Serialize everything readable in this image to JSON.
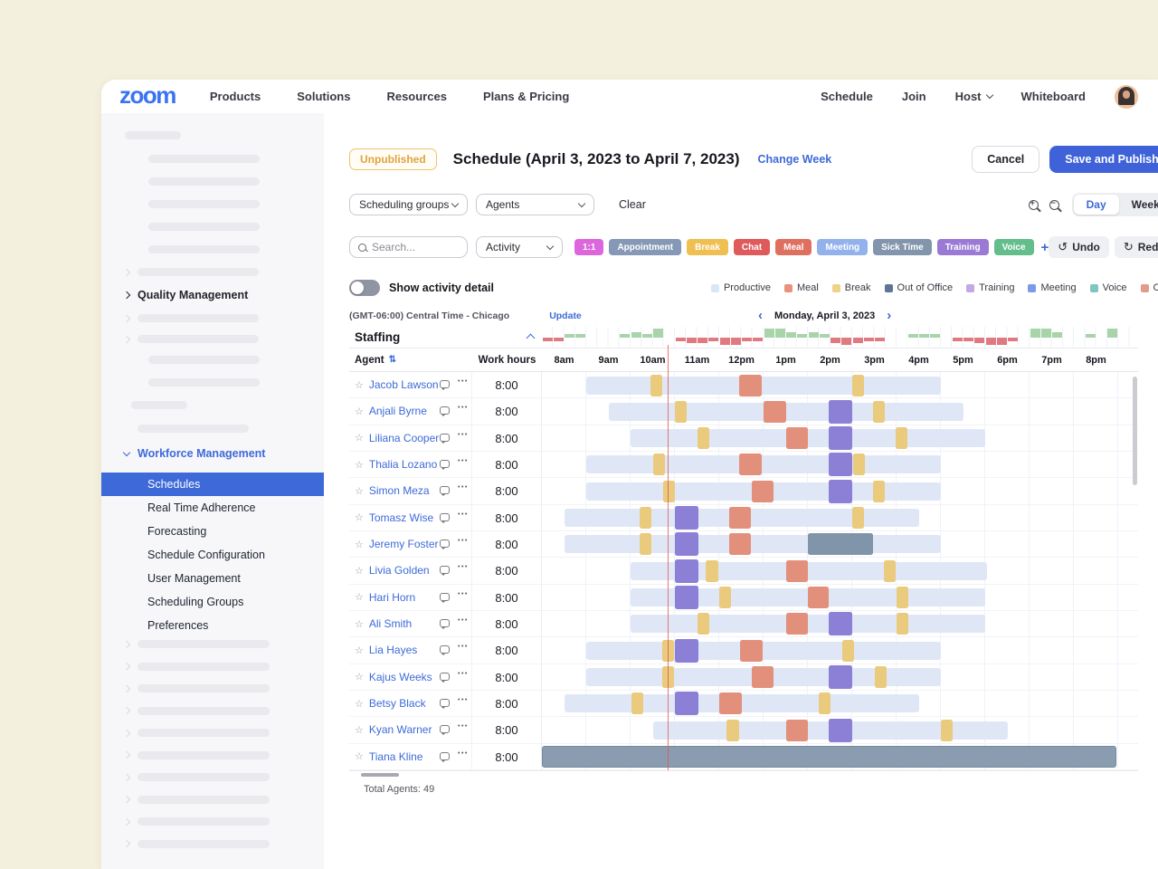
{
  "topnav": {
    "logo": "zoom",
    "items": [
      "Products",
      "Solutions",
      "Resources",
      "Plans & Pricing"
    ],
    "right_items": [
      {
        "label": "Schedule",
        "dropdown": false
      },
      {
        "label": "Join",
        "dropdown": false
      },
      {
        "label": "Host",
        "dropdown": true
      },
      {
        "label": "Whiteboard",
        "dropdown": false
      }
    ]
  },
  "sidebar": {
    "quality_label": "Quality Management",
    "workforce_label": "Workforce Management",
    "subitems": [
      "Schedules",
      "Real Time Adherence",
      "Forecasting",
      "Schedule Configuration",
      "User Management",
      "Scheduling Groups",
      "Preferences"
    ],
    "active_subitem": "Schedules",
    "skeleton_bottom_rows": 10
  },
  "header": {
    "badge": "Unpublished",
    "title": "Schedule (April 3, 2023 to April 7, 2023)",
    "change_week": "Change Week",
    "cancel": "Cancel",
    "save": "Save and Publish"
  },
  "filters": {
    "group_select": "Scheduling groups",
    "agent_select": "Agents",
    "clear": "Clear",
    "day": "Day",
    "week": "Week",
    "search_placeholder": "Search...",
    "activity_select": "Activity",
    "plus": "+",
    "undo": "Undo",
    "redo": "Redo",
    "chips": [
      {
        "label": "1:1",
        "color": "#DC66DC"
      },
      {
        "label": "Appointment",
        "color": "#8598B5"
      },
      {
        "label": "Break",
        "color": "#EFBF52"
      },
      {
        "label": "Chat",
        "color": "#DF5A5A"
      },
      {
        "label": "Meal",
        "color": "#DF7060"
      },
      {
        "label": "Meeting",
        "color": "#93B2EC"
      },
      {
        "label": "Sick Time",
        "color": "#8295AC"
      },
      {
        "label": "Training",
        "color": "#9B7AD6"
      },
      {
        "label": "Voice",
        "color": "#64BE8C"
      }
    ]
  },
  "toggle_label": "Show activity detail",
  "legend": [
    {
      "label": "Productive",
      "color": "#D9E6F8"
    },
    {
      "label": "Meal",
      "color": "#E8927E"
    },
    {
      "label": "Break",
      "color": "#EED288"
    },
    {
      "label": "Out of Office",
      "color": "#5D7693"
    },
    {
      "label": "Training",
      "color": "#C2A9E5"
    },
    {
      "label": "Meeting",
      "color": "#7B9BE8"
    },
    {
      "label": "Voice",
      "color": "#7FC6C0"
    },
    {
      "label": "Chat",
      "color": "#E49A8D"
    }
  ],
  "timezone": {
    "text": "(GMT-06:00) Central Time - Chicago",
    "update": "Update"
  },
  "date_nav": {
    "label": "Monday, April 3, 2023",
    "prev": "‹",
    "next": "›"
  },
  "icons": {
    "undo": "↺",
    "redo": "↻",
    "star": "☆",
    "sort": "⇅",
    "dots": "•••"
  },
  "schedule": {
    "staffing_label": "Staffing",
    "agent_header": "Agent",
    "hours_header": "Work hours",
    "times": [
      "8am",
      "9am",
      "10am",
      "11am",
      "12pm",
      "1pm",
      "2pm",
      "3pm",
      "4pm",
      "5pm",
      "6pm",
      "7pm",
      "8pm"
    ],
    "total": "Total Agents: 49",
    "staffing_values": [
      -2,
      -2,
      2,
      2,
      0,
      0,
      0,
      2,
      3,
      2,
      5,
      0,
      -2,
      -3,
      -3,
      -2,
      -4,
      -4,
      -2,
      -2,
      5,
      5,
      3,
      2,
      3,
      2,
      -3,
      -4,
      -3,
      -2,
      -2,
      0,
      0,
      2,
      2,
      2,
      0,
      -2,
      -2,
      -3,
      -4,
      -4,
      -2,
      0,
      5,
      5,
      3,
      0,
      0,
      2,
      0,
      5,
      0
    ],
    "staffing_pos_color": "#A9D3A9",
    "staffing_neg_color": "#E17A80",
    "colors": {
      "productive": "#DFE7F6",
      "break": "#EACA7C",
      "meal": "#E2907B",
      "meeting": "#8B80D6",
      "ooo": "#8095AA",
      "ooo_full": "#8A9CB0"
    },
    "agents": [
      {
        "name": "Jacob Lawson",
        "hours": "8:00",
        "start": 1.0,
        "end": 9.0,
        "blocks": [
          [
            "break",
            2.45,
            0.27
          ],
          [
            "meal",
            4.45,
            0.5
          ],
          [
            "break",
            7.0,
            0.27
          ]
        ]
      },
      {
        "name": "Anjali Byrne",
        "hours": "8:00",
        "start": 1.5,
        "end": 9.5,
        "blocks": [
          [
            "break",
            3.0,
            0.27
          ],
          [
            "meal",
            5.0,
            0.5
          ],
          [
            "meeting",
            6.47,
            0.53
          ],
          [
            "break",
            7.47,
            0.27
          ]
        ]
      },
      {
        "name": "Liliana Cooper",
        "hours": "8:00",
        "start": 2.0,
        "end": 10.0,
        "blocks": [
          [
            "break",
            3.5,
            0.27
          ],
          [
            "meal",
            5.5,
            0.5
          ],
          [
            "meeting",
            6.47,
            0.53
          ],
          [
            "break",
            7.97,
            0.27
          ]
        ]
      },
      {
        "name": "Thalia Lozano",
        "hours": "8:00",
        "start": 1.0,
        "end": 9.0,
        "blocks": [
          [
            "break",
            2.5,
            0.27
          ],
          [
            "meal",
            4.45,
            0.5
          ],
          [
            "meeting",
            6.47,
            0.53
          ],
          [
            "break",
            7.02,
            0.27
          ]
        ]
      },
      {
        "name": "Simon Meza",
        "hours": "8:00",
        "start": 1.0,
        "end": 9.0,
        "blocks": [
          [
            "break",
            2.73,
            0.27
          ],
          [
            "meal",
            4.73,
            0.5
          ],
          [
            "meeting",
            6.47,
            0.53
          ],
          [
            "break",
            7.47,
            0.27
          ]
        ]
      },
      {
        "name": "Tomasz Wise",
        "hours": "8:00",
        "start": 0.5,
        "end": 8.5,
        "blocks": [
          [
            "break",
            2.2,
            0.27
          ],
          [
            "meeting",
            3.0,
            0.53
          ],
          [
            "meal",
            4.22,
            0.5
          ],
          [
            "break",
            7.0,
            0.27
          ]
        ]
      },
      {
        "name": "Jeremy Foster",
        "hours": "8:00",
        "start": 0.5,
        "end": 9.0,
        "blocks": [
          [
            "break",
            2.2,
            0.27
          ],
          [
            "meeting",
            3.0,
            0.53
          ],
          [
            "meal",
            4.22,
            0.5
          ],
          [
            "ooo",
            6.0,
            1.47
          ]
        ]
      },
      {
        "name": "Livia Golden",
        "hours": "8:00",
        "start": 2.0,
        "end": 10.05,
        "blocks": [
          [
            "meeting",
            3.0,
            0.53
          ],
          [
            "break",
            3.7,
            0.27
          ],
          [
            "meal",
            5.5,
            0.5
          ],
          [
            "break",
            7.72,
            0.27
          ]
        ]
      },
      {
        "name": "Hari Horn",
        "hours": "8:00",
        "start": 2.0,
        "end": 10.0,
        "blocks": [
          [
            "meeting",
            3.0,
            0.53
          ],
          [
            "break",
            4.0,
            0.27
          ],
          [
            "meal",
            6.0,
            0.47
          ],
          [
            "break",
            8.0,
            0.27
          ]
        ]
      },
      {
        "name": "Ali Smith",
        "hours": "8:00",
        "start": 2.0,
        "end": 10.0,
        "blocks": [
          [
            "break",
            3.5,
            0.27
          ],
          [
            "meal",
            5.5,
            0.5
          ],
          [
            "meeting",
            6.47,
            0.53
          ],
          [
            "break",
            8.0,
            0.27
          ]
        ]
      },
      {
        "name": "Lia Hayes",
        "hours": "8:00",
        "start": 1.0,
        "end": 9.0,
        "blocks": [
          [
            "break",
            2.72,
            0.27
          ],
          [
            "meeting",
            3.0,
            0.53
          ],
          [
            "meal",
            4.47,
            0.5
          ],
          [
            "break",
            6.77,
            0.27
          ]
        ]
      },
      {
        "name": "Kajus Weeks",
        "hours": "8:00",
        "start": 1.0,
        "end": 9.0,
        "blocks": [
          [
            "break",
            2.72,
            0.27
          ],
          [
            "meal",
            4.73,
            0.5
          ],
          [
            "meeting",
            6.47,
            0.53
          ],
          [
            "break",
            7.5,
            0.27
          ]
        ]
      },
      {
        "name": "Betsy Black",
        "hours": "8:00",
        "start": 0.5,
        "end": 8.5,
        "blocks": [
          [
            "break",
            2.02,
            0.27
          ],
          [
            "meeting",
            3.0,
            0.53
          ],
          [
            "meal",
            4.0,
            0.5
          ],
          [
            "break",
            6.25,
            0.27
          ]
        ]
      },
      {
        "name": "Kyan Warner",
        "hours": "8:00",
        "start": 2.5,
        "end": 10.5,
        "blocks": [
          [
            "break",
            4.17,
            0.27
          ],
          [
            "meal",
            5.5,
            0.5
          ],
          [
            "meeting",
            6.47,
            0.53
          ],
          [
            "break",
            9.0,
            0.27
          ]
        ]
      },
      {
        "name": "Tiana Kline",
        "hours": "8:00",
        "start": 0.0,
        "end": 12.95,
        "full_ooo": true,
        "blocks": []
      }
    ]
  }
}
